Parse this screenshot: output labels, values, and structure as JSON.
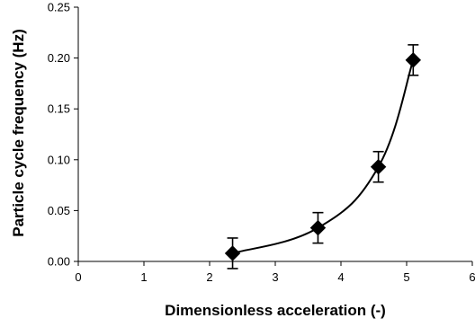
{
  "chart_data": {
    "type": "scatter",
    "xlabel": "Dimensionless acceleration (-)",
    "ylabel": "Particle cycle frequency (Hz)",
    "xlim": [
      0,
      6
    ],
    "ylim": [
      0,
      0.25
    ],
    "x_ticks": [
      0,
      1,
      2,
      3,
      4,
      5,
      6
    ],
    "x_tick_labels": [
      "0",
      "1",
      "2",
      "3",
      "4",
      "5",
      "6"
    ],
    "y_ticks": [
      0,
      0.05,
      0.1,
      0.15,
      0.2,
      0.25
    ],
    "y_tick_labels": [
      "0.00",
      "0.05",
      "0.10",
      "0.15",
      "0.20",
      "0.25"
    ],
    "grid": false,
    "legend": "none",
    "marker": "diamond",
    "marker_color": "#000000",
    "line_color": "#000000",
    "trendline": "smooth curve through points",
    "series": [
      {
        "x": [
          2.35,
          3.65,
          4.57,
          5.1
        ],
        "y": [
          0.008,
          0.033,
          0.093,
          0.198
        ],
        "error": [
          0.015,
          0.015,
          0.015,
          0.015
        ]
      }
    ]
  }
}
